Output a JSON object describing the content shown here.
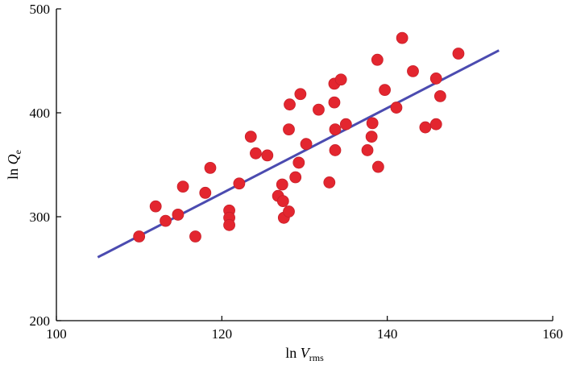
{
  "chart_data": {
    "type": "scatter",
    "xlabel": {
      "base": "ln ",
      "var": "V",
      "sub": "rms"
    },
    "ylabel": {
      "base": "ln ",
      "var": "Q",
      "sub": "e"
    },
    "xlim": [
      100,
      160
    ],
    "ylim": [
      200,
      500
    ],
    "xticks": [
      100,
      120,
      140,
      160
    ],
    "yticks": [
      200,
      300,
      400,
      500
    ],
    "grid": false,
    "series": [
      {
        "marker_color": "#e3262f",
        "points": [
          [
            110,
            281
          ],
          [
            112,
            310
          ],
          [
            113.2,
            296
          ],
          [
            114.7,
            302
          ],
          [
            115.3,
            329
          ],
          [
            116.8,
            281
          ],
          [
            118,
            323
          ],
          [
            118.6,
            347
          ],
          [
            120.9,
            306
          ],
          [
            120.9,
            299
          ],
          [
            120.9,
            292
          ],
          [
            122.1,
            332
          ],
          [
            123.5,
            377
          ],
          [
            124.1,
            361
          ],
          [
            125.5,
            359
          ],
          [
            126.8,
            320
          ],
          [
            127.3,
            331
          ],
          [
            127.4,
            315
          ],
          [
            127.5,
            299
          ],
          [
            128.1,
            305
          ],
          [
            128.1,
            384
          ],
          [
            128.2,
            408
          ],
          [
            128.9,
            338
          ],
          [
            129.3,
            352
          ],
          [
            129.5,
            418
          ],
          [
            130.2,
            370
          ],
          [
            131.7,
            403
          ],
          [
            133,
            333
          ],
          [
            133.6,
            428
          ],
          [
            133.6,
            410
          ],
          [
            133.7,
            384
          ],
          [
            133.7,
            364
          ],
          [
            134.4,
            432
          ],
          [
            135,
            389
          ],
          [
            137.6,
            364
          ],
          [
            138.1,
            377
          ],
          [
            138.2,
            390
          ],
          [
            138.8,
            451
          ],
          [
            138.9,
            348
          ],
          [
            139.7,
            422
          ],
          [
            141.1,
            405
          ],
          [
            141.8,
            472
          ],
          [
            143.1,
            440
          ],
          [
            144.6,
            386
          ],
          [
            145.9,
            389
          ],
          [
            145.9,
            433
          ],
          [
            146.4,
            416
          ],
          [
            148.6,
            457
          ]
        ]
      }
    ],
    "fit_line": {
      "color": "#4b4bb0",
      "x": [
        105,
        153.5
      ],
      "y": [
        261,
        460
      ]
    }
  }
}
